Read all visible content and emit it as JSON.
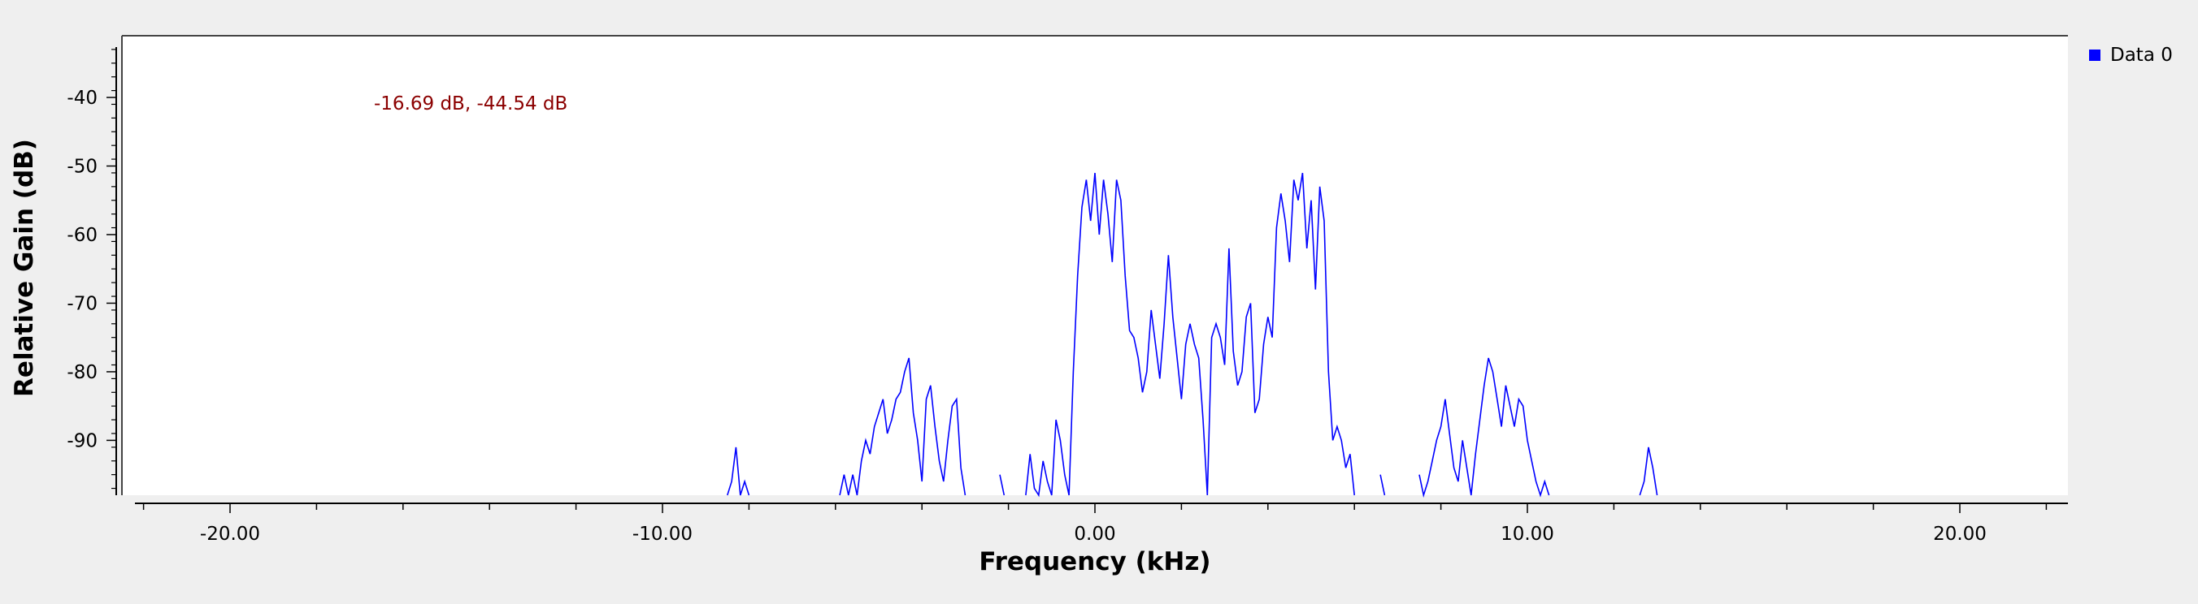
{
  "marker_readout": "-16.69 dB, -44.54 dB",
  "legend": {
    "entries": [
      "Data 0"
    ],
    "placement": "top-right"
  },
  "colors": {
    "series": "#0000ff",
    "marker_text": "#8b0000",
    "background": "#efefef",
    "canvas": "#ffffff"
  },
  "chart_data": {
    "type": "line",
    "title": "",
    "xlabel": "Frequency (kHz)",
    "ylabel": "Relative Gain (dB)",
    "xlim": [
      -22.5,
      22.5
    ],
    "ylim": [
      -98,
      -31
    ],
    "xticks": [
      -20,
      -10,
      0,
      10,
      20
    ],
    "xtick_labels": [
      "-20.00",
      "-10.00",
      "0.00",
      "10.00",
      "20.00"
    ],
    "yticks": [
      -40,
      -50,
      -60,
      -70,
      -80,
      -90
    ],
    "ytick_labels": [
      "-40",
      "-50",
      "-60",
      "-70",
      "-80",
      "-90"
    ],
    "grid": false,
    "series": [
      {
        "name": "Data 0",
        "color": "#0000ff",
        "x": [
          -8.5,
          -8.4,
          -8.3,
          -8.2,
          -8.1,
          -8.0,
          -5.9,
          -5.8,
          -5.7,
          -5.6,
          -5.5,
          -5.4,
          -5.3,
          -5.2,
          -5.1,
          -5.0,
          -4.9,
          -4.8,
          -4.7,
          -4.6,
          -4.5,
          -4.4,
          -4.3,
          -4.2,
          -4.1,
          -4.0,
          -3.9,
          -3.8,
          -3.7,
          -3.6,
          -3.5,
          -3.4,
          -3.3,
          -3.2,
          -3.1,
          -3.0,
          -2.2,
          -2.1,
          -1.6,
          -1.5,
          -1.4,
          -1.3,
          -1.2,
          -1.1,
          -1.0,
          -0.9,
          -0.8,
          -0.7,
          -0.6,
          -0.5,
          -0.4,
          -0.3,
          -0.2,
          -0.1,
          0.0,
          0.1,
          0.2,
          0.3,
          0.4,
          0.5,
          0.6,
          0.7,
          0.8,
          0.9,
          1.0,
          1.1,
          1.2,
          1.3,
          1.4,
          1.5,
          1.6,
          1.7,
          1.8,
          1.9,
          2.0,
          2.1,
          2.2,
          2.3,
          2.4,
          2.5,
          2.6,
          2.7,
          2.8,
          2.9,
          3.0,
          3.1,
          3.2,
          3.3,
          3.4,
          3.5,
          3.6,
          3.7,
          3.8,
          3.9,
          4.0,
          4.1,
          4.2,
          4.3,
          4.4,
          4.5,
          4.6,
          4.7,
          4.8,
          4.9,
          5.0,
          5.1,
          5.2,
          5.3,
          5.4,
          5.5,
          5.6,
          5.7,
          5.8,
          5.9,
          6.0,
          6.6,
          6.7,
          7.5,
          7.6,
          7.7,
          7.8,
          7.9,
          8.0,
          8.1,
          8.2,
          8.3,
          8.4,
          8.5,
          8.6,
          8.7,
          8.8,
          8.9,
          9.0,
          9.1,
          9.2,
          9.3,
          9.4,
          9.5,
          9.6,
          9.7,
          9.8,
          9.9,
          10.0,
          10.1,
          10.2,
          10.3,
          10.4,
          10.5,
          12.6,
          12.7,
          12.8,
          12.9,
          13.0
        ],
        "values": [
          -98,
          -96,
          -91,
          -98,
          -96,
          -98,
          -98,
          -95,
          -98,
          -95,
          -98,
          -93,
          -90,
          -92,
          -88,
          -86,
          -84,
          -89,
          -87,
          -84,
          -83,
          -80,
          -78,
          -86,
          -90,
          -96,
          -84,
          -82,
          -88,
          -93,
          -96,
          -90,
          -85,
          -84,
          -94,
          -98,
          -95,
          -98,
          -98,
          -92,
          -97,
          -98,
          -93,
          -96,
          -98,
          -87,
          -90,
          -95,
          -98,
          -80,
          -66,
          -56,
          -52,
          -58,
          -51,
          -60,
          -52,
          -57,
          -64,
          -52,
          -55,
          -66,
          -74,
          -75,
          -78,
          -83,
          -80,
          -71,
          -76,
          -81,
          -73,
          -63,
          -72,
          -78,
          -84,
          -76,
          -73,
          -76,
          -78,
          -87,
          -98,
          -75,
          -73,
          -75,
          -79,
          -62,
          -77,
          -82,
          -80,
          -72,
          -70,
          -86,
          -84,
          -76,
          -72,
          -75,
          -59,
          -54,
          -58,
          -64,
          -52,
          -55,
          -51,
          -62,
          -55,
          -68,
          -53,
          -58,
          -80,
          -90,
          -88,
          -90,
          -94,
          -92,
          -98,
          -95,
          -98,
          -95,
          -98,
          -96,
          -93,
          -90,
          -88,
          -84,
          -89,
          -94,
          -96,
          -90,
          -94,
          -98,
          -92,
          -87,
          -82,
          -78,
          -80,
          -84,
          -88,
          -82,
          -85,
          -88,
          -84,
          -85,
          -90,
          -93,
          -96,
          -98,
          -96,
          -98,
          -98,
          -96,
          -91,
          -94,
          -98
        ]
      }
    ]
  }
}
